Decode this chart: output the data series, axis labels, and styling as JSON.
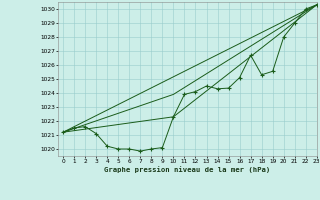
{
  "title": "Graphe pression niveau de la mer (hPa)",
  "background_color": "#cceee8",
  "grid_color": "#99cccc",
  "line_color": "#1a5c1a",
  "xlim": [
    -0.5,
    23
  ],
  "ylim": [
    1019.5,
    1030.5
  ],
  "xticks": [
    0,
    1,
    2,
    3,
    4,
    5,
    6,
    7,
    8,
    9,
    10,
    11,
    12,
    13,
    14,
    15,
    16,
    17,
    18,
    19,
    20,
    21,
    22,
    23
  ],
  "yticks": [
    1020,
    1021,
    1022,
    1023,
    1024,
    1025,
    1026,
    1027,
    1028,
    1029,
    1030
  ],
  "series_main_x": [
    0,
    1,
    2,
    3,
    4,
    5,
    6,
    7,
    8,
    9,
    10,
    11,
    12,
    13,
    14,
    15,
    16,
    17,
    18,
    19,
    20,
    21,
    22,
    23
  ],
  "series_main_y": [
    1021.2,
    1021.5,
    1021.6,
    1021.1,
    1020.2,
    1020.0,
    1020.0,
    1019.85,
    1020.0,
    1020.1,
    1022.3,
    1023.9,
    1024.1,
    1024.5,
    1024.3,
    1024.35,
    1025.1,
    1026.7,
    1025.3,
    1025.55,
    1028.0,
    1029.0,
    1030.0,
    1030.3
  ],
  "trend1_x": [
    0,
    23
  ],
  "trend1_y": [
    1021.2,
    1030.3
  ],
  "trend2_x": [
    0,
    10,
    23
  ],
  "trend2_y": [
    1021.2,
    1022.3,
    1030.3
  ],
  "trend3_x": [
    0,
    10,
    23
  ],
  "trend3_y": [
    1021.2,
    1023.9,
    1030.3
  ]
}
